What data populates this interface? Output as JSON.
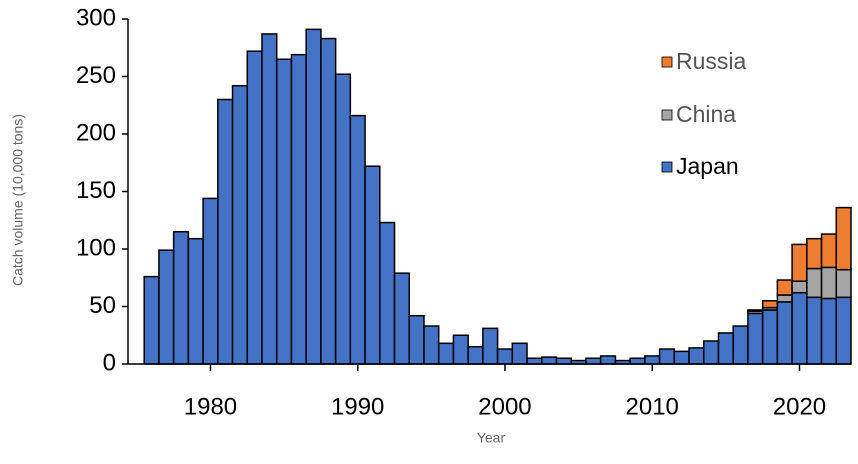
{
  "chart_data": {
    "type": "stacked-bar",
    "y_label": "Catch volume (10,000 tons)",
    "x_label": "Year",
    "x": [
      1976,
      1977,
      1978,
      1979,
      1980,
      1981,
      1982,
      1983,
      1984,
      1985,
      1986,
      1987,
      1988,
      1989,
      1990,
      1991,
      1992,
      1993,
      1994,
      1995,
      1996,
      1997,
      1998,
      1999,
      2000,
      2001,
      2002,
      2003,
      2004,
      2005,
      2006,
      2007,
      2008,
      2009,
      2010,
      2011,
      2012,
      2013,
      2014,
      2015,
      2016,
      2017,
      2018,
      2019,
      2020,
      2021,
      2022,
      2023
    ],
    "series": [
      {
        "name": "Japan",
        "color": "#4472c4",
        "values": [
          76,
          99,
          115,
          109,
          144,
          230,
          242,
          272,
          287,
          265,
          269,
          291,
          283,
          252,
          216,
          172,
          123,
          79,
          42,
          33,
          18,
          25,
          15,
          31,
          13,
          18,
          5,
          6,
          5,
          3,
          5,
          7,
          3,
          5,
          7,
          13,
          11,
          14,
          20,
          27,
          33,
          44,
          47,
          54,
          62,
          58,
          57,
          58
        ]
      },
      {
        "name": "China",
        "color": "#a5a5a5",
        "values": [
          0,
          0,
          0,
          0,
          0,
          0,
          0,
          0,
          0,
          0,
          0,
          0,
          0,
          0,
          0,
          0,
          0,
          0,
          0,
          0,
          0,
          0,
          0,
          0,
          0,
          0,
          0,
          0,
          0,
          0,
          0,
          0,
          0,
          0,
          0,
          0,
          0,
          0,
          0,
          0,
          0,
          2,
          2,
          6,
          10,
          25,
          27,
          24
        ]
      },
      {
        "name": "Russia",
        "color": "#ed7d31",
        "values": [
          0,
          0,
          0,
          0,
          0,
          0,
          0,
          0,
          0,
          0,
          0,
          0,
          0,
          0,
          0,
          0,
          0,
          0,
          0,
          0,
          0,
          0,
          0,
          0,
          0,
          0,
          0,
          0,
          0,
          0,
          0,
          0,
          0,
          0,
          0,
          0,
          0,
          0,
          0,
          0,
          0,
          1,
          6,
          13,
          32,
          26,
          29,
          54
        ]
      }
    ],
    "xlim": [
      1974.4,
      2023.5
    ],
    "xticks": [
      1980,
      1990,
      2000,
      2010,
      2020
    ],
    "ylim": [
      0,
      300
    ],
    "yticks": [
      0,
      50,
      100,
      150,
      200,
      250,
      300
    ]
  }
}
